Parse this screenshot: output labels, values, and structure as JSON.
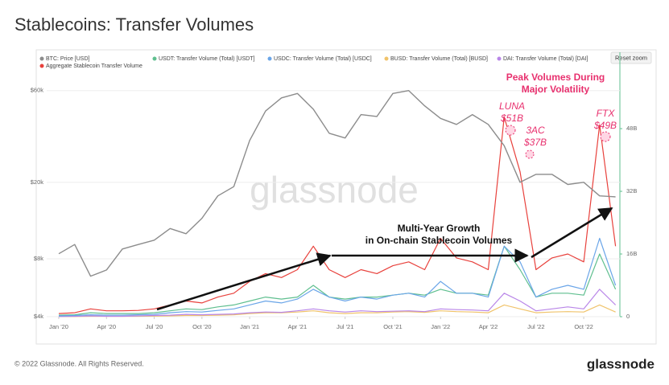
{
  "chart_data": {
    "type": "line",
    "title": "Stablecoins: Transfer Volumes",
    "reset_zoom": "Reset zoom",
    "watermark": "glassnode",
    "copyright": "© 2022 Glassnode. All Rights Reserved.",
    "brand": "glassnode",
    "annotations": [
      "Peak Volumes During",
      "Major Volatility",
      "LUNA",
      "$51B",
      "3AC",
      "$37B",
      "FTX",
      "$49B",
      "Multi-Year Growth",
      "in On-chain Stablecoin Volumes"
    ],
    "categories": [
      "Jan '20",
      null,
      null,
      "Apr '20",
      null,
      null,
      "Jul '20",
      null,
      null,
      "Oct '20",
      null,
      null,
      "Jan '21",
      null,
      null,
      "Apr '21",
      null,
      null,
      "Jul '21",
      null,
      null,
      "Oct '21",
      null,
      null,
      "Jan '22",
      null,
      null,
      "Apr '22",
      null,
      null,
      "Jul '22",
      null,
      null,
      "Oct '22",
      null,
      null
    ],
    "log_scale_y": true,
    "grid": true,
    "ylim": [
      4000,
      95000
    ],
    "yticks": [
      {
        "value": 4000,
        "label": "$4k"
      },
      {
        "value": 8000,
        "label": "$8k"
      },
      {
        "value": 20000,
        "label": "$20k"
      },
      {
        "value": 60000,
        "label": "$60k"
      }
    ],
    "y2lim": [
      0,
      67.5
    ],
    "y2ticks": [
      0,
      {
        "value": 16,
        "label": "16B"
      },
      {
        "value": 32,
        "label": "32B"
      },
      {
        "value": 48,
        "label": "48B"
      }
    ],
    "series": [
      {
        "name": "BTC: Price [USD]",
        "color": "#8c8c8c",
        "axis": "y",
        "values": [
          8500,
          9500,
          6500,
          7000,
          9000,
          9500,
          10000,
          11500,
          10800,
          13000,
          17000,
          19000,
          33000,
          47000,
          55000,
          58000,
          48000,
          36000,
          34000,
          45000,
          44000,
          58000,
          60000,
          50000,
          43000,
          40000,
          45000,
          40000,
          31000,
          20000,
          22000,
          22000,
          19500,
          20000,
          17000,
          16800
        ]
      },
      {
        "name": "USDT: Transfer Volume (Total) [USDT]",
        "color": "#5fbf8f",
        "axis": "y2",
        "values": [
          0.4,
          0.5,
          1,
          0.8,
          0.8,
          0.8,
          1,
          1.5,
          2,
          1.8,
          2.5,
          3,
          4,
          5,
          4.5,
          5,
          8,
          5,
          4.5,
          5,
          5,
          5.5,
          6,
          5.5,
          7,
          6,
          6,
          5.5,
          18,
          12,
          5,
          6,
          6,
          5.5,
          16,
          7
        ]
      },
      {
        "name": "USDC: Transfer Volume (Total) [USDC]",
        "color": "#6aa5e8",
        "axis": "y2",
        "values": [
          0.2,
          0.3,
          0.5,
          0.4,
          0.4,
          0.5,
          0.6,
          1,
          1.3,
          1.2,
          1.6,
          2,
          3,
          4,
          3.5,
          4.5,
          7,
          5,
          4,
          5,
          4.5,
          5.5,
          6,
          5,
          9,
          6,
          6,
          5,
          18,
          14,
          5,
          7,
          8,
          7,
          20,
          8
        ]
      },
      {
        "name": "BUSD: Transfer Volume (Total) [BUSD]",
        "color": "#f0c36a",
        "axis": "y2",
        "values": [
          0.05,
          0.05,
          0.1,
          0.1,
          0.1,
          0.1,
          0.15,
          0.2,
          0.3,
          0.3,
          0.4,
          0.5,
          0.8,
          1,
          1,
          1.2,
          1.5,
          1,
          0.8,
          1,
          1,
          1.2,
          1.3,
          1.1,
          1.5,
          1.3,
          1.2,
          1,
          3,
          2,
          1,
          1.2,
          1.3,
          1.2,
          3,
          1.2
        ]
      },
      {
        "name": "DAI: Transfer Volume (Total) [DAI]",
        "color": "#b986e8",
        "axis": "y2",
        "values": [
          0.05,
          0.1,
          0.2,
          0.1,
          0.1,
          0.2,
          0.3,
          0.4,
          0.6,
          0.5,
          0.6,
          0.7,
          1,
          1.2,
          1.1,
          1.5,
          2,
          1.5,
          1.2,
          1.5,
          1.3,
          1.4,
          1.5,
          1.3,
          2,
          1.8,
          1.7,
          1.5,
          6,
          4,
          1.5,
          2,
          2.5,
          2,
          7,
          3
        ]
      },
      {
        "name": "Aggregate Stablecoin Transfer Volume",
        "color": "#e8413c",
        "axis": "y2",
        "values": [
          0.8,
          1,
          2,
          1.5,
          1.5,
          1.6,
          2,
          3,
          4,
          3.5,
          5,
          6,
          9,
          11,
          10,
          12,
          18,
          12,
          10,
          12,
          11,
          13,
          14,
          12,
          20,
          15,
          14,
          12,
          51,
          37,
          12,
          15,
          16,
          14,
          49,
          18
        ]
      }
    ]
  }
}
